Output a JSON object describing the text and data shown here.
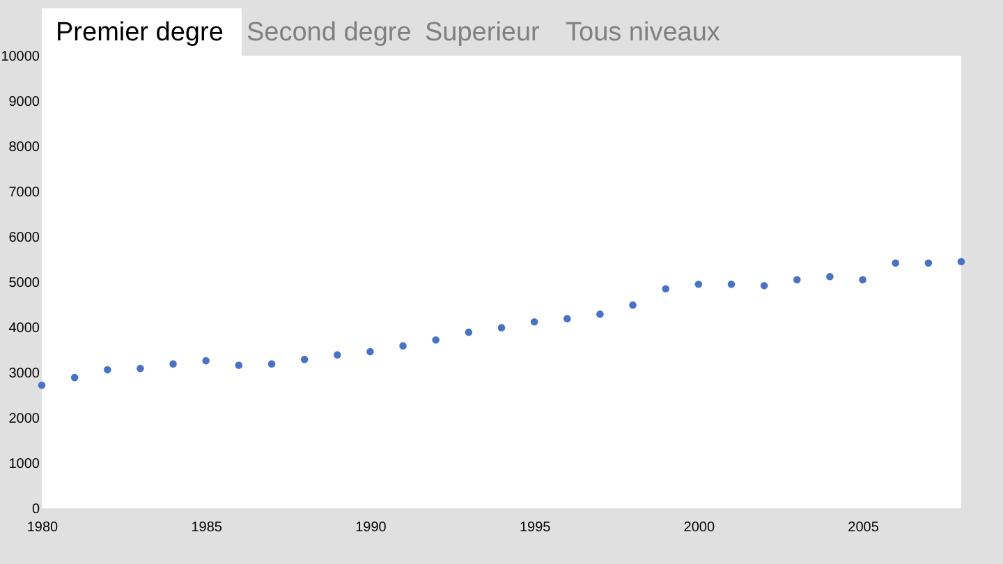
{
  "chart_data": {
    "type": "scatter",
    "title": "Premier degre",
    "annotations": [
      "Second degre",
      "Superieur",
      "Tous niveaux"
    ],
    "x": [
      1980,
      1981,
      1982,
      1983,
      1984,
      1985,
      1986,
      1987,
      1988,
      1989,
      1990,
      1991,
      1992,
      1993,
      1994,
      1995,
      1996,
      1997,
      1998,
      1999,
      2000,
      2001,
      2002,
      2003,
      2004,
      2005,
      2006,
      2007,
      2008
    ],
    "series": [
      {
        "color": "#4a72c4",
        "values": [
          2720,
          2890,
          3060,
          3090,
          3190,
          3260,
          3160,
          3190,
          3290,
          3390,
          3460,
          3590,
          3720,
          3890,
          3990,
          4120,
          4190,
          4290,
          4490,
          4850,
          4950,
          4950,
          4920,
          5050,
          5120,
          5050,
          5420,
          5420,
          5450
        ]
      }
    ],
    "xlim": [
      1980,
      2008
    ],
    "xticks": [
      1980,
      1985,
      1990,
      1995,
      2000,
      2005
    ],
    "ylim": [
      0,
      10000
    ],
    "yticks": [
      0,
      1000,
      2000,
      3000,
      4000,
      5000,
      6000,
      7000,
      8000,
      9000,
      10000
    ],
    "grid": false,
    "marker": "circle"
  }
}
